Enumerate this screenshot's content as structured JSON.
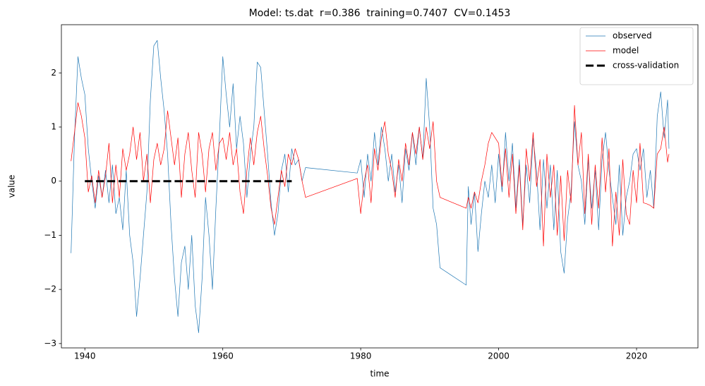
{
  "chart_data": {
    "type": "line",
    "title": "Model: ts.dat  r=0.386  training=0.7407  CV=0.1453",
    "xlabel": "time",
    "ylabel": "value",
    "xlim": [
      1936.6,
      2028.9
    ],
    "ylim": [
      -3.08,
      2.89
    ],
    "xticks": [
      1940,
      1960,
      1980,
      2000,
      2020
    ],
    "yticks": [
      {
        "value": -3,
        "label": "−3"
      },
      {
        "value": -2,
        "label": "−2"
      },
      {
        "value": -1,
        "label": "−1"
      },
      0,
      1,
      2
    ],
    "legend": "upper right",
    "series": [
      {
        "name": "observed",
        "color": "#1f77b4",
        "linewidth": 0.7,
        "x": [
          1938,
          1938.5,
          1939,
          1939.5,
          1940,
          1940.5,
          1941,
          1941.5,
          1942,
          1942.5,
          1943,
          1943.5,
          1944,
          1944.5,
          1945,
          1945.5,
          1946,
          1946.5,
          1947,
          1947.5,
          1948,
          1948.5,
          1949,
          1949.5,
          1950,
          1950.5,
          1951,
          1951.5,
          1952,
          1952.5,
          1953,
          1953.5,
          1954,
          1954.5,
          1955,
          1955.5,
          1956,
          1956.5,
          1957,
          1957.5,
          1958,
          1958.5,
          1959,
          1959.5,
          1960,
          1960.5,
          1961,
          1961.5,
          1962,
          1962.5,
          1963,
          1963.5,
          1964,
          1964.5,
          1965,
          1965.5,
          1966,
          1966.5,
          1967,
          1967.5,
          1968,
          1968.5,
          1969,
          1969.5,
          1970,
          1970.5,
          1971,
          1971.5,
          1972,
          1979.5,
          1980,
          1980.5,
          1981,
          1981.5,
          1982,
          1982.5,
          1983,
          1983.5,
          1984,
          1984.5,
          1985,
          1985.5,
          1986,
          1986.5,
          1987,
          1987.5,
          1988,
          1988.5,
          1989,
          1989.5,
          1990,
          1990.5,
          1991,
          1991.5,
          1995.3,
          1995.6,
          1996,
          1996.5,
          1997,
          1997.5,
          1998,
          1998.5,
          1999,
          1999.5,
          2000,
          2000.5,
          2001,
          2001.5,
          2002,
          2002.5,
          2003,
          2003.5,
          2004,
          2004.5,
          2005,
          2005.5,
          2006,
          2006.5,
          2007,
          2007.5,
          2008,
          2008.5,
          2009,
          2009.5,
          2010,
          2010.5,
          2011,
          2011.5,
          2012,
          2012.5,
          2013,
          2013.5,
          2014,
          2014.5,
          2015,
          2015.5,
          2016,
          2016.5,
          2017,
          2017.5,
          2018,
          2018.5,
          2019,
          2019.5,
          2020,
          2020.5,
          2021,
          2021.5,
          2022,
          2022.5,
          2023,
          2023.5,
          2024,
          2024.5,
          2024.7
        ],
        "values": [
          -1.33,
          0.8,
          2.3,
          1.9,
          1.6,
          0.6,
          0.0,
          -0.5,
          0.1,
          -0.3,
          0.2,
          -0.4,
          0.3,
          -0.6,
          -0.3,
          -0.9,
          0.2,
          -1.0,
          -1.5,
          -2.5,
          -1.8,
          -1.0,
          -0.2,
          1.5,
          2.5,
          2.6,
          1.9,
          1.3,
          0.5,
          -0.8,
          -1.8,
          -2.5,
          -1.5,
          -1.2,
          -2.0,
          -1.0,
          -2.3,
          -2.8,
          -1.8,
          -0.3,
          -1.0,
          -2.0,
          -0.5,
          0.8,
          2.3,
          1.6,
          1.0,
          1.8,
          0.6,
          1.2,
          0.7,
          -0.3,
          0.5,
          1.0,
          2.2,
          2.1,
          1.3,
          0.5,
          -0.4,
          -1.0,
          -0.6,
          0.2,
          0.5,
          -0.2,
          0.6,
          0.3,
          0.4,
          0.0,
          0.25,
          0.15,
          0.4,
          -0.3,
          0.5,
          0.0,
          0.9,
          0.3,
          1.0,
          0.6,
          0.0,
          0.5,
          -0.2,
          0.3,
          -0.4,
          0.6,
          0.2,
          0.9,
          0.3,
          1.0,
          0.4,
          1.9,
          1.0,
          -0.5,
          -0.8,
          -1.6,
          -1.92,
          -0.1,
          -0.8,
          -0.2,
          -1.3,
          -0.6,
          0.0,
          -0.3,
          0.3,
          -0.4,
          0.5,
          -0.2,
          0.9,
          0.0,
          0.7,
          -0.5,
          0.4,
          -0.8,
          0.3,
          -0.4,
          0.8,
          0.2,
          -0.9,
          0.4,
          -0.5,
          0.3,
          -0.9,
          0.2,
          -1.3,
          -1.7,
          -0.7,
          -0.2,
          1.1,
          0.3,
          0.0,
          -0.8,
          0.4,
          -0.5,
          0.2,
          -0.9,
          0.4,
          0.9,
          0.2,
          -0.3,
          -0.8,
          0.3,
          -1.0,
          -0.3,
          0.0,
          0.5,
          0.6,
          0.2,
          0.6,
          -0.3,
          0.2,
          -0.5,
          1.2,
          1.65,
          0.8,
          1.5,
          0.6
        ]
      },
      {
        "name": "model",
        "color": "#ff0000",
        "linewidth": 0.7,
        "x": [
          1938,
          1938.5,
          1939,
          1939.5,
          1940,
          1940.5,
          1941,
          1941.5,
          1942,
          1942.5,
          1943,
          1943.5,
          1944,
          1944.5,
          1945,
          1945.5,
          1946,
          1946.5,
          1947,
          1947.5,
          1948,
          1948.5,
          1949,
          1949.5,
          1950,
          1950.5,
          1951,
          1951.5,
          1952,
          1952.5,
          1953,
          1953.5,
          1954,
          1954.5,
          1955,
          1955.5,
          1956,
          1956.5,
          1957,
          1957.5,
          1958,
          1958.5,
          1959,
          1959.5,
          1960,
          1960.5,
          1961,
          1961.5,
          1962,
          1962.5,
          1963,
          1963.5,
          1964,
          1964.5,
          1965,
          1965.5,
          1966,
          1966.5,
          1967,
          1967.5,
          1968,
          1968.5,
          1969,
          1969.5,
          1970,
          1970.5,
          1971,
          1971.5,
          1972,
          1979.5,
          1980,
          1980.5,
          1981,
          1981.5,
          1982,
          1982.5,
          1983,
          1983.5,
          1984,
          1984.5,
          1985,
          1985.5,
          1986,
          1986.5,
          1987,
          1987.5,
          1988,
          1988.5,
          1989,
          1989.5,
          1990,
          1990.5,
          1991,
          1991.5,
          1995.3,
          1995.6,
          1996,
          1996.5,
          1997,
          1997.5,
          1998,
          1998.5,
          1999,
          1999.5,
          2000,
          2000.5,
          2001,
          2001.5,
          2002,
          2002.5,
          2003,
          2003.5,
          2004,
          2004.5,
          2005,
          2005.5,
          2006,
          2006.5,
          2007,
          2007.5,
          2008,
          2008.5,
          2009,
          2009.5,
          2010,
          2010.5,
          2011,
          2011.5,
          2012,
          2012.5,
          2013,
          2013.5,
          2014,
          2014.5,
          2015,
          2015.5,
          2016,
          2016.5,
          2017,
          2017.5,
          2018,
          2018.5,
          2019,
          2019.5,
          2020,
          2020.5,
          2021,
          2021.5,
          2022,
          2022.5,
          2023,
          2023.5,
          2024,
          2024.5,
          2024.7
        ],
        "values": [
          0.37,
          0.9,
          1.45,
          1.2,
          0.8,
          -0.2,
          0.1,
          -0.4,
          0.2,
          -0.3,
          0.1,
          0.7,
          -0.4,
          0.3,
          -0.3,
          0.6,
          0.2,
          0.5,
          1.0,
          0.4,
          0.9,
          0.0,
          0.5,
          -0.4,
          0.4,
          0.7,
          0.3,
          0.6,
          1.3,
          0.8,
          0.3,
          0.8,
          -0.3,
          0.5,
          0.9,
          0.2,
          -0.3,
          0.9,
          0.5,
          -0.2,
          0.6,
          0.9,
          0.2,
          0.7,
          0.8,
          0.4,
          0.9,
          0.3,
          0.6,
          -0.2,
          -0.6,
          0.2,
          0.8,
          0.3,
          0.9,
          1.2,
          0.6,
          0.1,
          -0.5,
          -0.8,
          -0.3,
          0.2,
          -0.1,
          0.5,
          0.3,
          0.6,
          0.4,
          0.0,
          -0.3,
          0.05,
          -0.6,
          0.0,
          0.3,
          -0.4,
          0.6,
          0.2,
          0.8,
          1.1,
          0.5,
          0.2,
          -0.3,
          0.4,
          0.0,
          0.7,
          0.3,
          0.9,
          0.5,
          1.0,
          0.4,
          1.0,
          0.6,
          1.1,
          0.0,
          -0.3,
          -0.5,
          -0.3,
          -0.5,
          -0.2,
          -0.4,
          0.0,
          0.3,
          0.7,
          0.9,
          0.8,
          0.7,
          -0.1,
          0.6,
          -0.3,
          0.5,
          -0.6,
          0.3,
          -0.9,
          0.6,
          0.0,
          0.9,
          -0.1,
          0.4,
          -1.2,
          0.5,
          -0.3,
          0.3,
          -1.0,
          0.1,
          -1.1,
          0.2,
          -0.4,
          1.4,
          0.3,
          0.9,
          -0.6,
          0.5,
          -0.8,
          0.3,
          -0.5,
          0.8,
          -0.2,
          0.6,
          -1.2,
          -0.2,
          -1.0,
          0.4,
          -0.6,
          -0.8,
          0.2,
          -0.4,
          0.7,
          -0.4,
          -0.42,
          -0.45,
          -0.5,
          0.5,
          0.6,
          1.0,
          0.35,
          0.5
        ]
      },
      {
        "name": "cross-validation",
        "color": "#000000",
        "linewidth": 3,
        "dash": true,
        "x": [
          1940,
          1970
        ],
        "values": [
          0,
          0
        ]
      }
    ]
  }
}
